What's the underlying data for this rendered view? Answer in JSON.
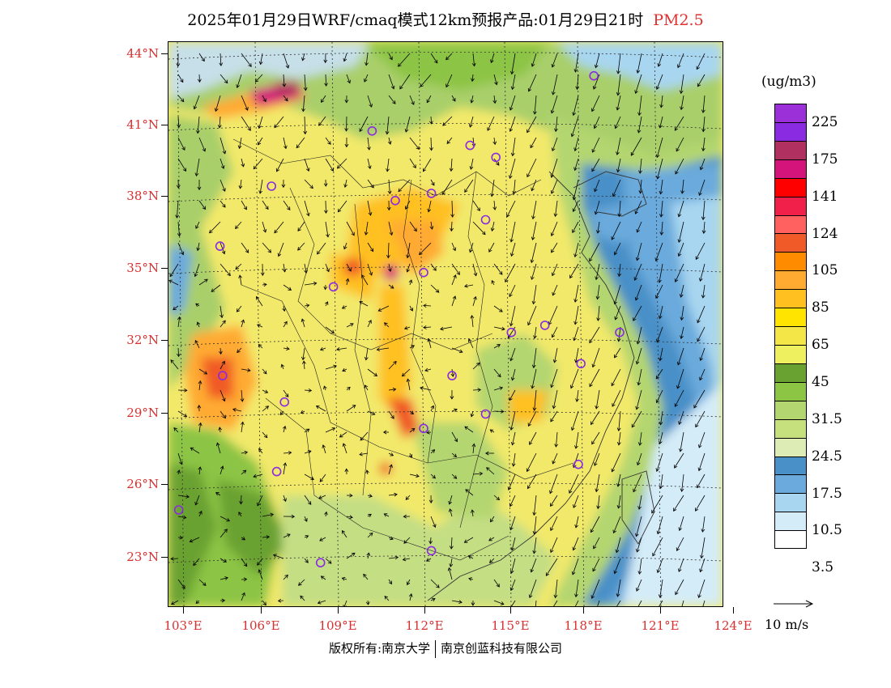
{
  "title": {
    "text": "2025年01月29日WRF/cmaq模式12km预报产品:01月29日21时",
    "pollutant": "PM2.5",
    "pollutant_color": "#e03030"
  },
  "map": {
    "lat_labels": [
      "44°N",
      "41°N",
      "38°N",
      "35°N",
      "32°N",
      "29°N",
      "26°N",
      "23°N"
    ],
    "lon_labels": [
      "103°E",
      "106°E",
      "109°E",
      "112°E",
      "115°E",
      "118°E",
      "121°E",
      "124°E"
    ],
    "lat_range": [
      21,
      44.5
    ],
    "lon_range": [
      102.7,
      124
    ],
    "cities": [
      {
        "lon": 118.9,
        "lat": 43.1
      },
      {
        "lon": 110.3,
        "lat": 40.8
      },
      {
        "lon": 114.1,
        "lat": 40.2
      },
      {
        "lon": 115.1,
        "lat": 39.7
      },
      {
        "lon": 106.4,
        "lat": 38.5
      },
      {
        "lon": 111.2,
        "lat": 37.9
      },
      {
        "lon": 112.6,
        "lat": 38.2
      },
      {
        "lon": 114.7,
        "lat": 37.1
      },
      {
        "lon": 104.4,
        "lat": 36.0
      },
      {
        "lon": 112.3,
        "lat": 34.9
      },
      {
        "lon": 108.8,
        "lat": 34.3
      },
      {
        "lon": 117.0,
        "lat": 32.7
      },
      {
        "lon": 115.7,
        "lat": 32.4
      },
      {
        "lon": 119.9,
        "lat": 32.4
      },
      {
        "lon": 118.4,
        "lat": 31.1
      },
      {
        "lon": 104.5,
        "lat": 30.6
      },
      {
        "lon": 113.4,
        "lat": 30.6
      },
      {
        "lon": 106.9,
        "lat": 29.5
      },
      {
        "lon": 114.7,
        "lat": 29.0
      },
      {
        "lon": 112.3,
        "lat": 28.4
      },
      {
        "lon": 118.3,
        "lat": 26.9
      },
      {
        "lon": 106.6,
        "lat": 26.6
      },
      {
        "lon": 102.8,
        "lat": 25.0
      },
      {
        "lon": 112.6,
        "lat": 23.3
      },
      {
        "lon": 108.3,
        "lat": 22.8
      }
    ],
    "city_marker_color": "#8a2be2"
  },
  "legend": {
    "unit": "(ug/m3)",
    "colors": [
      "#9b30d8",
      "#8a2be2",
      "#b03060",
      "#d4147a",
      "#ff0000",
      "#f0204a",
      "#ff6060",
      "#f05a28",
      "#ff8c00",
      "#ffaa30",
      "#ffc020",
      "#ffe400",
      "#f4e646",
      "#eef060",
      "#6aa232",
      "#8cc444",
      "#b4d670",
      "#c6e07e",
      "#dcecb4",
      "#4a90c8",
      "#6aaadc",
      "#a8d6f0",
      "#d4ecf8",
      "#ffffff"
    ],
    "labels": [
      "225",
      "175",
      "141",
      "124",
      "105",
      "85",
      "65",
      "45",
      "31.5",
      "24.5",
      "17.5",
      "10.5",
      "3.5"
    ]
  },
  "wind_ref": {
    "label": "10 m/s"
  },
  "footer": {
    "left": "版权所有:南京大学",
    "right": "南京创蓝科技有限公司"
  }
}
